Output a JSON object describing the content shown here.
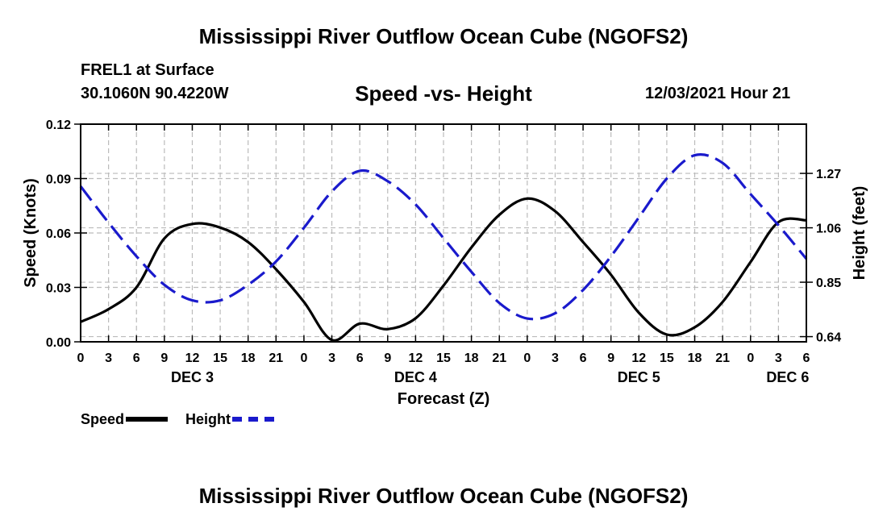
{
  "page": {
    "main_title": "Mississippi River Outflow Ocean Cube (NGOFS2)",
    "station": "FREL1 at Surface",
    "coords": "30.1060N  90.4220W",
    "subtitle": "Speed -vs- Height",
    "datetime": "12/03/2021 Hour 21",
    "legend": {
      "speed": "Speed",
      "height": "Height"
    }
  },
  "chart_data": {
    "type": "line",
    "title": "Speed -vs- Height",
    "xlabel": "Forecast (Z)",
    "ylabel_left": "Speed (Knots)",
    "ylabel_right": "Height (feet)",
    "x_range_hours": [
      0,
      78
    ],
    "x_tick_hours": [
      0,
      3,
      6,
      9,
      12,
      15,
      18,
      21,
      24,
      27,
      30,
      33,
      36,
      39,
      42,
      45,
      48,
      51,
      54,
      57,
      60,
      63,
      66,
      69,
      72,
      75,
      78
    ],
    "x_tick_labels": [
      "0",
      "3",
      "6",
      "9",
      "12",
      "15",
      "18",
      "21",
      "0",
      "3",
      "6",
      "9",
      "12",
      "15",
      "18",
      "21",
      "0",
      "3",
      "6",
      "9",
      "12",
      "15",
      "18",
      "21",
      "0",
      "3",
      "6"
    ],
    "date_labels": [
      {
        "label": "DEC 3",
        "hour": 12
      },
      {
        "label": "DEC 4",
        "hour": 36
      },
      {
        "label": "DEC 5",
        "hour": 60
      },
      {
        "label": "DEC 6",
        "hour": 76
      }
    ],
    "ylim_left": [
      0,
      0.12
    ],
    "y_ticks_left": [
      0.0,
      0.03,
      0.06,
      0.09,
      0.12
    ],
    "y_tick_labels_left": [
      "0.00",
      "0.03",
      "0.06",
      "0.09",
      "0.12"
    ],
    "ylim_right": [
      0.62,
      1.46
    ],
    "y_ticks_right": [
      0.64,
      0.85,
      1.06,
      1.27
    ],
    "y_tick_labels_right": [
      "0.64",
      "0.85",
      "1.06",
      "1.27"
    ],
    "grid": true,
    "series": [
      {
        "name": "Speed",
        "axis": "left",
        "color": "#000000",
        "style": "solid",
        "points": [
          [
            0,
            0.011
          ],
          [
            3,
            0.018
          ],
          [
            6,
            0.03
          ],
          [
            9,
            0.057
          ],
          [
            12,
            0.065
          ],
          [
            15,
            0.063
          ],
          [
            18,
            0.055
          ],
          [
            21,
            0.04
          ],
          [
            24,
            0.022
          ],
          [
            27,
            0.001
          ],
          [
            30,
            0.01
          ],
          [
            33,
            0.007
          ],
          [
            36,
            0.013
          ],
          [
            39,
            0.031
          ],
          [
            42,
            0.052
          ],
          [
            45,
            0.07
          ],
          [
            48,
            0.079
          ],
          [
            51,
            0.072
          ],
          [
            54,
            0.055
          ],
          [
            57,
            0.037
          ],
          [
            60,
            0.016
          ],
          [
            63,
            0.004
          ],
          [
            66,
            0.008
          ],
          [
            69,
            0.022
          ],
          [
            72,
            0.044
          ],
          [
            75,
            0.066
          ],
          [
            78,
            0.067
          ]
        ]
      },
      {
        "name": "Height",
        "axis": "right",
        "color": "#1a1acc",
        "style": "dashed",
        "points": [
          [
            0,
            1.22
          ],
          [
            3,
            1.08
          ],
          [
            6,
            0.95
          ],
          [
            9,
            0.84
          ],
          [
            12,
            0.78
          ],
          [
            15,
            0.78
          ],
          [
            18,
            0.84
          ],
          [
            21,
            0.93
          ],
          [
            24,
            1.06
          ],
          [
            27,
            1.2
          ],
          [
            30,
            1.28
          ],
          [
            33,
            1.24
          ],
          [
            36,
            1.15
          ],
          [
            39,
            1.02
          ],
          [
            42,
            0.89
          ],
          [
            45,
            0.77
          ],
          [
            48,
            0.71
          ],
          [
            51,
            0.73
          ],
          [
            54,
            0.82
          ],
          [
            57,
            0.95
          ],
          [
            60,
            1.1
          ],
          [
            63,
            1.25
          ],
          [
            66,
            1.34
          ],
          [
            69,
            1.31
          ],
          [
            72,
            1.19
          ],
          [
            75,
            1.07
          ],
          [
            78,
            0.94
          ]
        ]
      }
    ]
  }
}
